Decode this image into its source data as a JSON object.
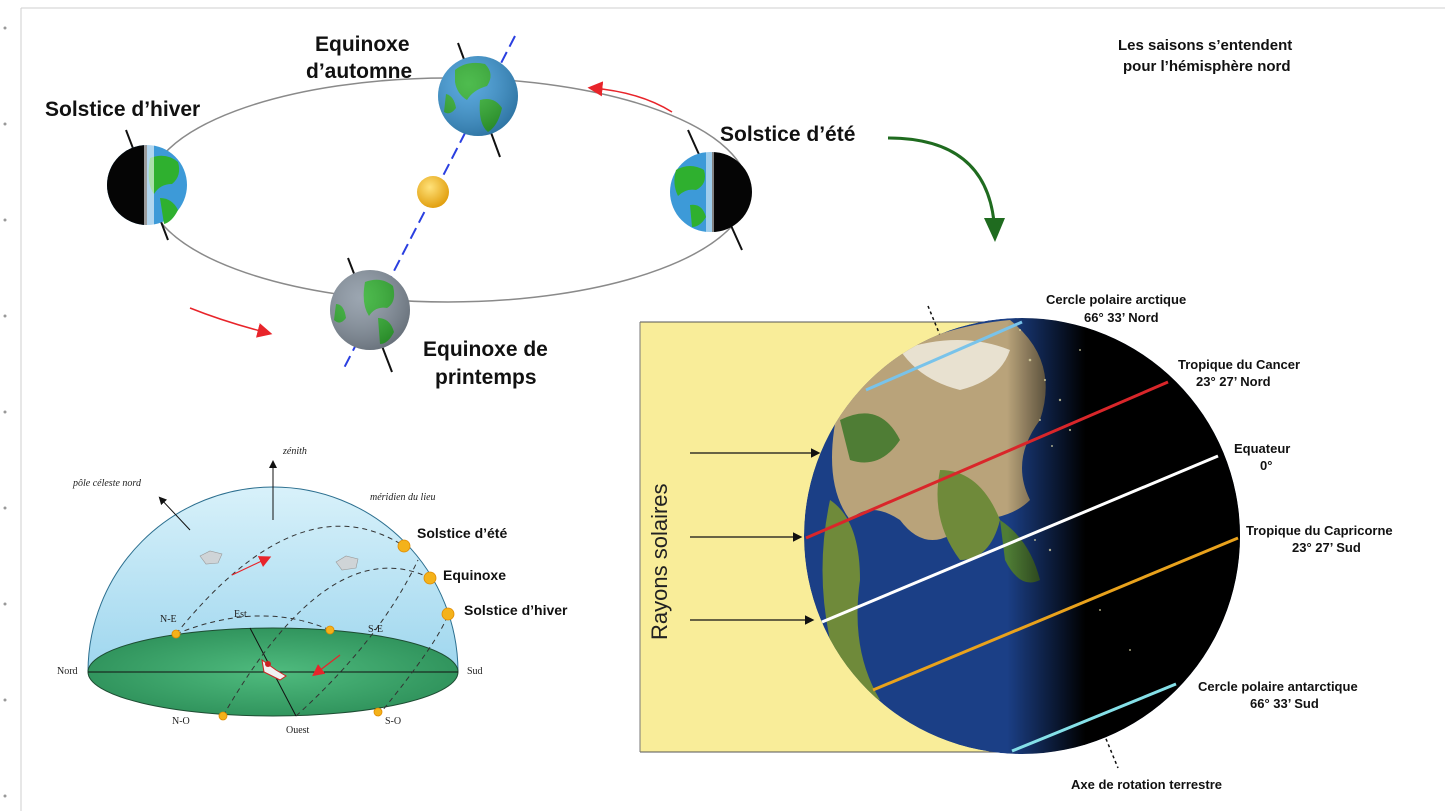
{
  "orbit": {
    "solstice_hiver": "Solstice d’hiver",
    "equinoxe_automne_l1": "Equinoxe",
    "equinoxe_automne_l2": "d’automne",
    "solstice_ete": "Solstice d’été",
    "equinoxe_printemps_l1": "Equinoxe de",
    "equinoxe_printemps_l2": "printemps",
    "note_l1": "Les saisons s’entendent",
    "note_l2": "pour l’hémisphère nord"
  },
  "earth": {
    "arctic_l1": "Cercle polaire arctique",
    "arctic_l2": "66° 33’ Nord",
    "cancer_l1": "Tropique du Cancer",
    "cancer_l2": "23° 27’ Nord",
    "equator_l1": "Equateur",
    "equator_l2": "0°",
    "capricorn_l1": "Tropique du Capricorne",
    "capricorn_l2": "23° 27’ Sud",
    "antarctic_l1": "Cercle polaire antarctique",
    "antarctic_l2": "66° 33’ Sud",
    "axis": "Axe de rotation terrestre",
    "rays": "Rayons solaires"
  },
  "dome": {
    "zenith": "zénith",
    "pole": "pôle céleste nord",
    "meridien": "méridien du lieu",
    "solstice_ete": "Solstice d’été",
    "equinoxe": "Equinoxe",
    "solstice_hiver": "Solstice d’hiver",
    "nord": "Nord",
    "sud": "Sud",
    "est": "Est",
    "ouest": "Ouest",
    "ne": "N-E",
    "se": "S-E",
    "no": "N-O",
    "so": "S-O"
  },
  "colors": {
    "rays_bg": "#f9ed99",
    "arctic": "#79c3ea",
    "cancer": "#d9262a",
    "equator": "#ffffff",
    "capricorn": "#e9a21c",
    "antarctic": "#85e0e8",
    "arrow_green": "#1f6b1f",
    "arrow_red": "#e8242a",
    "axis_blue": "#2a3fe0",
    "sun": "#f1b728",
    "dome_sky": "#b9e3f3",
    "dome_ground": "#3aa66a"
  }
}
